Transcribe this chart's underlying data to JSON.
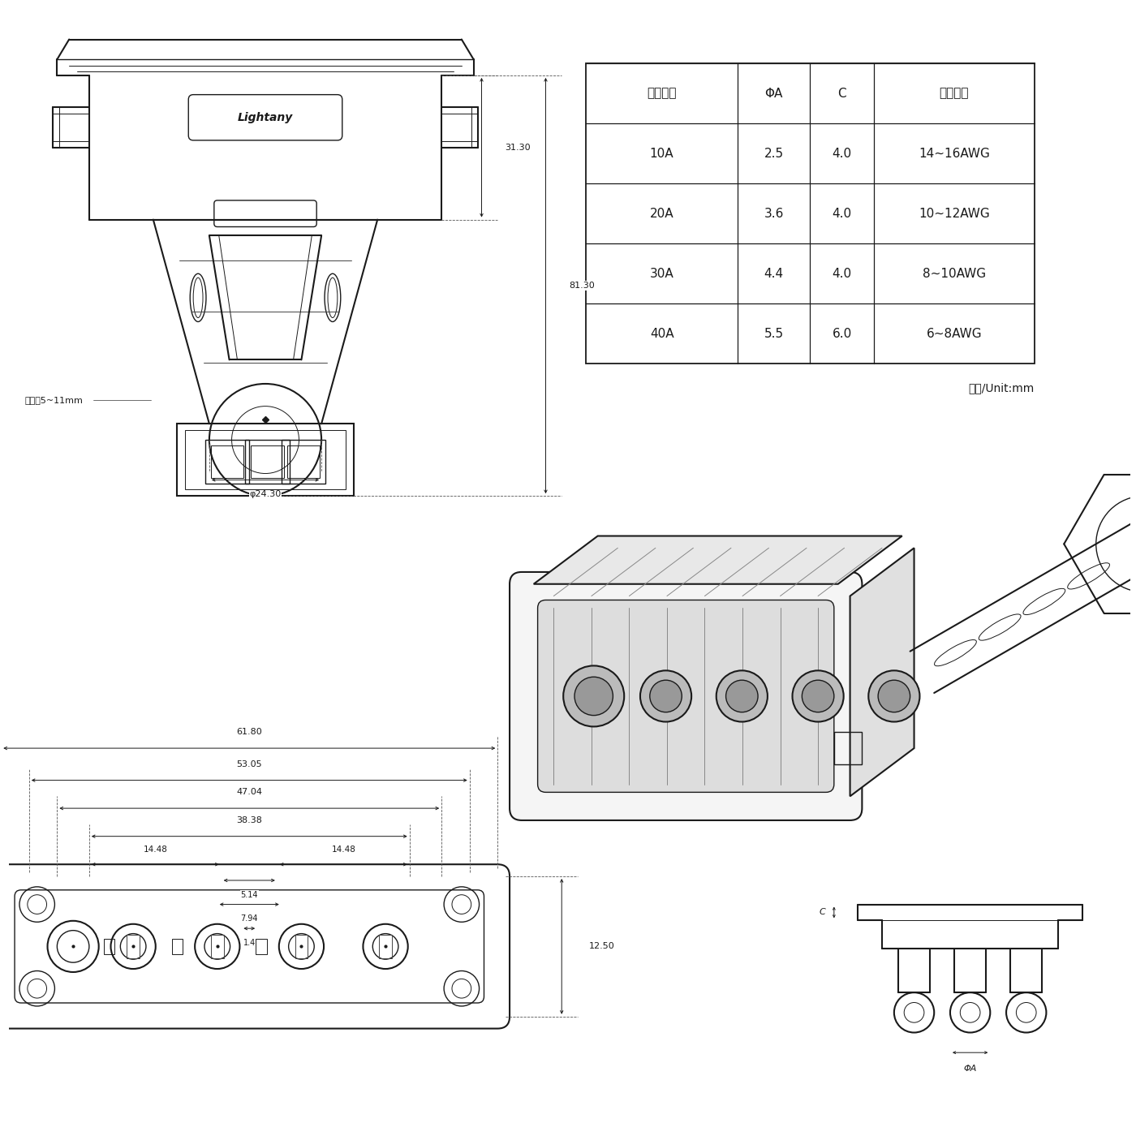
{
  "bg_color": "#ffffff",
  "line_color": "#1a1a1a",
  "table_header": [
    "额定电流",
    "ΦA",
    "C",
    "线材规格"
  ],
  "table_rows": [
    [
      "10A",
      "2.5",
      "4.0",
      "14~16AWG"
    ],
    [
      "20A",
      "3.6",
      "4.0",
      "10~12AWG"
    ],
    [
      "30A",
      "4.4",
      "4.0",
      "8~10AWG"
    ],
    [
      "40A",
      "5.5",
      "6.0",
      "6~8AWG"
    ]
  ],
  "unit_text": "单位/Unit:mm",
  "label_outlet": "出线兰5~11mm",
  "label_phi": "φ24.30",
  "label_31_30": "31.30",
  "label_81_30": "81.30",
  "label_61_80": "61.80",
  "label_53_05": "53.05",
  "label_47_04": "47.04",
  "label_38_38": "38.38",
  "label_14_48a": "14.48",
  "label_14_48b": "14.48",
  "label_5_14": "5.14",
  "label_7_94": "7.94",
  "label_1_4": "1.4",
  "label_12_50": "12.50",
  "label_lightany": "Lightany",
  "label_phiA": "ΦA",
  "label_C": "C"
}
